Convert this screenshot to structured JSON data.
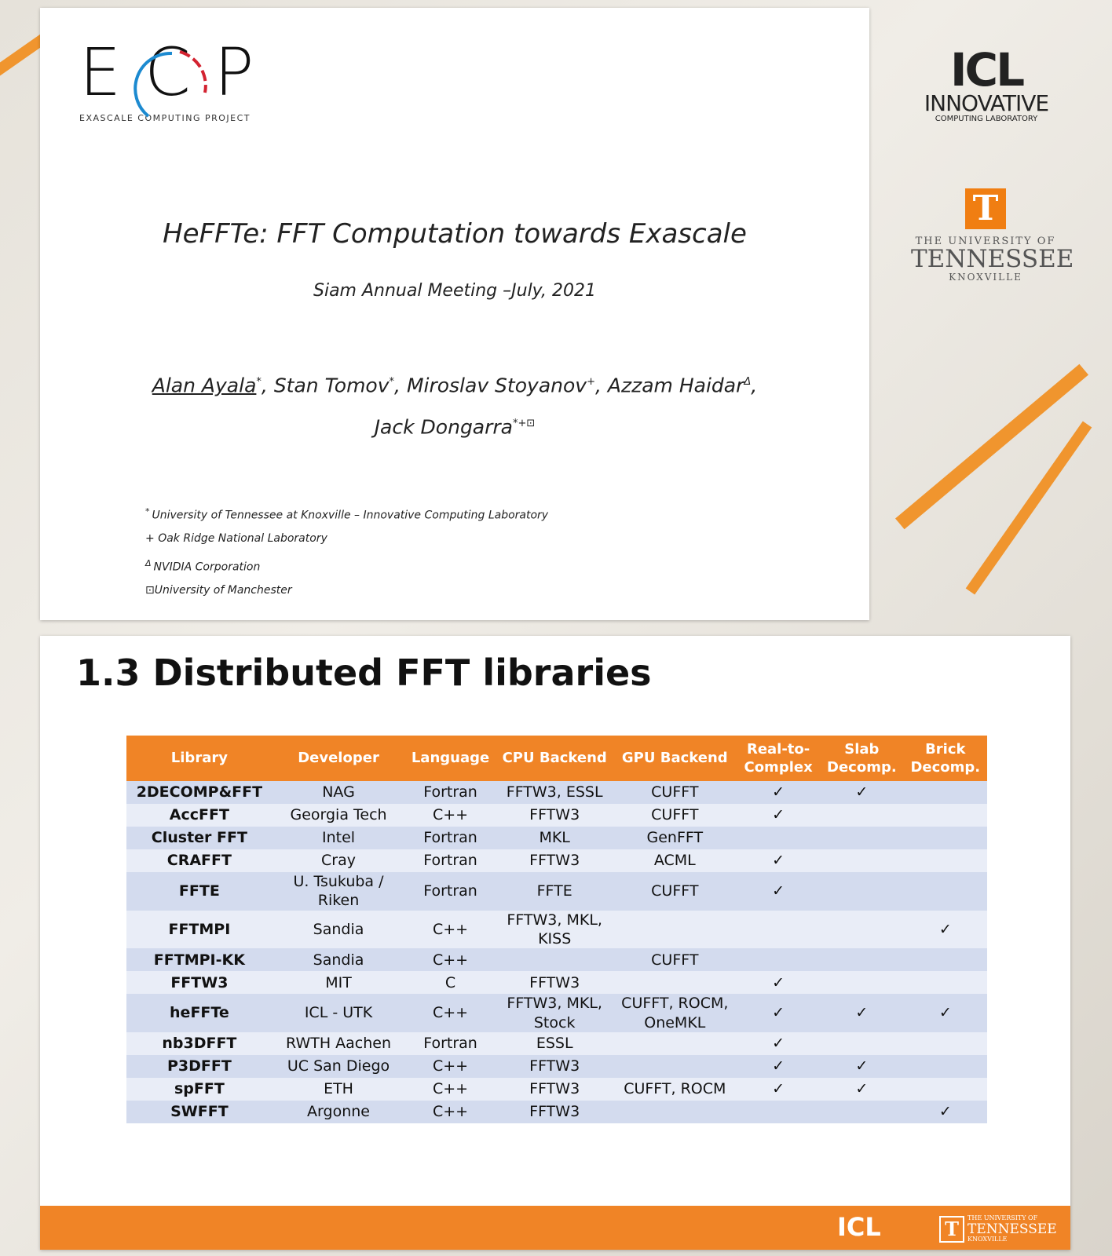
{
  "slide1": {
    "ecp_logo": {
      "mark": "ECP",
      "caption": "EXASCALE COMPUTING PROJECT"
    },
    "title": "HeFFTe: FFT Computation towards Exascale",
    "subtitle": "Siam Annual Meeting –July, 2021",
    "authors": [
      {
        "name": "Alan Ayala",
        "sup": "*",
        "sep": ","
      },
      {
        "name": "Stan Tomov",
        "sup": "*",
        "sep": ","
      },
      {
        "name": "Miroslav Stoyanov",
        "sup": "+",
        "sep": ","
      },
      {
        "name": "Azzam Haidar",
        "sup": "Δ",
        "sep": ","
      },
      {
        "name": "Jack Dongarra",
        "sup": "*+⊡"
      }
    ],
    "affiliations": [
      {
        "mark": "*",
        "text": "University of Tennessee at Knoxville – Innovative Computing Laboratory"
      },
      {
        "mark": "+",
        "text": "Oak Ridge National Laboratory"
      },
      {
        "mark": "Δ",
        "text": "NVIDIA Corporation"
      },
      {
        "mark": "⊡",
        "text": "University of Manchester"
      }
    ],
    "icl_logo": {
      "mark": "ICL",
      "line1": "INNOVATIVE",
      "line2": "COMPUTING LABORATORY"
    },
    "ut_logo": {
      "mark": "T",
      "line1": "THE UNIVERSITY OF",
      "line2": "TENNESSEE",
      "line3": "KNOXVILLE"
    }
  },
  "slide2": {
    "title": "1.3 Distributed FFT libraries",
    "table": {
      "header": [
        "Library",
        "Developer",
        "Language",
        "CPU Backend",
        "GPU Backend",
        "Real-to-Complex",
        "Slab Decomp.",
        "Brick Decomp."
      ],
      "rows": [
        [
          "2DECOMP&FFT",
          "NAG",
          "Fortran",
          "FFTW3, ESSL",
          "CUFFT",
          "✓",
          "✓",
          null
        ],
        [
          "AccFFT",
          "Georgia Tech",
          "C++",
          "FFTW3",
          "CUFFT",
          "✓",
          null,
          null
        ],
        [
          "Cluster FFT",
          "Intel",
          "Fortran",
          "MKL",
          "GenFFT",
          null,
          null,
          null
        ],
        [
          "CRAFFT",
          "Cray",
          "Fortran",
          "FFTW3",
          "ACML",
          "✓",
          null,
          null
        ],
        [
          "FFTE",
          "U. Tsukuba / Riken",
          "Fortran",
          "FFTE",
          "CUFFT",
          "✓",
          null,
          null
        ],
        [
          "FFTMPI",
          "Sandia",
          "C++",
          "FFTW3, MKL, KISS",
          null,
          null,
          null,
          "✓"
        ],
        [
          "FFTMPI-KK",
          "Sandia",
          "C++",
          null,
          "CUFFT",
          null,
          null,
          null
        ],
        [
          "FFTW3",
          "MIT",
          "C",
          "FFTW3",
          null,
          "✓",
          null,
          null
        ],
        [
          "heFFTe",
          "ICL - UTK",
          "C++",
          "FFTW3, MKL, Stock",
          "CUFFT, ROCM, OneMKL",
          "✓",
          "✓",
          "✓"
        ],
        [
          "nb3DFFT",
          "RWTH Aachen",
          "Fortran",
          "ESSL",
          null,
          "✓",
          null,
          null
        ],
        [
          "P3DFFT",
          "UC San Diego",
          "C++",
          "FFTW3",
          null,
          "✓",
          "✓",
          null
        ],
        [
          "spFFT",
          "ETH",
          "C++",
          "FFTW3",
          "CUFFT, ROCM",
          "✓",
          "✓",
          null
        ],
        [
          "SWFFT",
          "Argonne",
          "C++",
          "FFTW3",
          null,
          null,
          null,
          "✓"
        ]
      ]
    },
    "footer": {
      "icl": "ICL",
      "ut_mark": "T",
      "ut_line1": "THE UNIVERSITY OF",
      "ut_line2": "TENNESSEE",
      "ut_line3": "KNOXVILLE"
    }
  }
}
